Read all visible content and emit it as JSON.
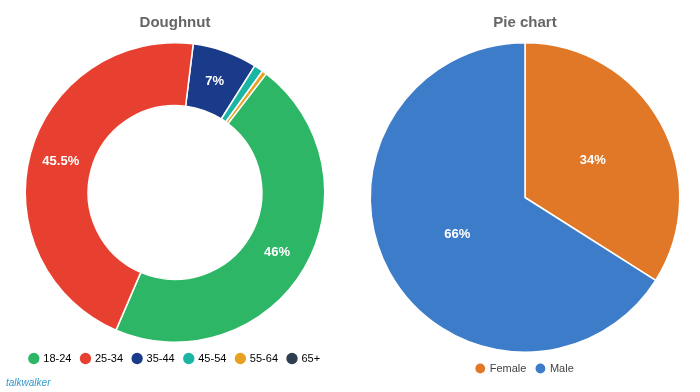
{
  "chart_data": [
    {
      "type": "doughnut",
      "title": "Doughnut",
      "values": [
        7.0,
        1.0,
        0.5,
        46.0,
        45.5
      ],
      "colors": [
        "#1a3a8a",
        "#1ab5a3",
        "#e8a020",
        "#2db665",
        "#e84030"
      ],
      "value_labels": [
        "7%",
        null,
        null,
        "46%",
        "45.5%"
      ],
      "data_labels": true,
      "legend": "bottom",
      "legend_entries": [
        {
          "name": "18-24",
          "color": "#2db665"
        },
        {
          "name": "25-34",
          "color": "#e84030"
        },
        {
          "name": "35-44",
          "color": "#1a3a8a"
        },
        {
          "name": "45-54",
          "color": "#1ab5a3"
        },
        {
          "name": "55-64",
          "color": "#e8a020"
        },
        {
          "name": "65+",
          "color": "#2c3e50"
        }
      ],
      "annotations": [
        {
          "text": "talkwalker",
          "color": "#3399cc"
        }
      ]
    },
    {
      "type": "pie",
      "title": "Pie chart",
      "categories": [
        "Female",
        "Male"
      ],
      "values": [
        34,
        66
      ],
      "colors": [
        "#e07828",
        "#3d7cc9"
      ],
      "value_labels": [
        "34%",
        "66%"
      ],
      "data_labels": true,
      "legend": "bottom"
    }
  ]
}
